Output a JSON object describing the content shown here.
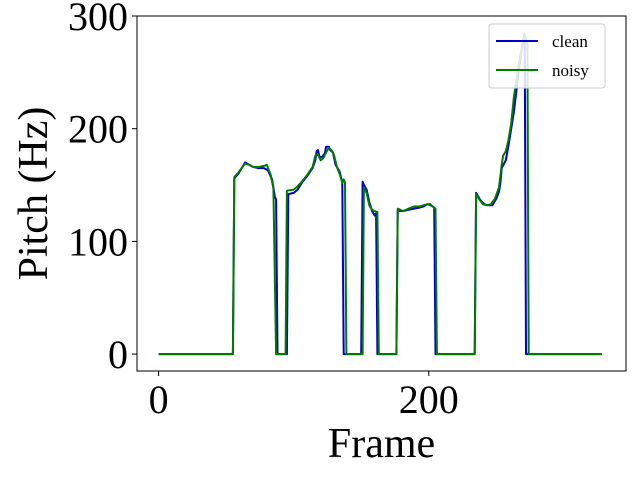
{
  "chart_data": {
    "type": "line",
    "title": "",
    "xlabel": "Frame",
    "ylabel": "Pitch (Hz)",
    "xlim": [
      -16,
      346
    ],
    "ylim": [
      -15,
      300
    ],
    "x_ticks": [
      0,
      200
    ],
    "x_tick_labels": [
      "0",
      "200"
    ],
    "y_ticks": [
      0,
      100,
      200,
      300
    ],
    "y_tick_labels": [
      "0",
      "100",
      "200",
      "300"
    ],
    "grid": false,
    "legend_position": "top-right",
    "series": [
      {
        "name": "clean",
        "color": "#0000cc",
        "points": [
          [
            0,
            0
          ],
          [
            55,
            0
          ],
          [
            56,
            156
          ],
          [
            59,
            160
          ],
          [
            62,
            166
          ],
          [
            64,
            170
          ],
          [
            67,
            168
          ],
          [
            70,
            166
          ],
          [
            74,
            165
          ],
          [
            78,
            165
          ],
          [
            81,
            163
          ],
          [
            84,
            155
          ],
          [
            86,
            140
          ],
          [
            87,
            137
          ],
          [
            88,
            0
          ],
          [
            95,
            0
          ],
          [
            96,
            142
          ],
          [
            100,
            143
          ],
          [
            103,
            146
          ],
          [
            106,
            152
          ],
          [
            110,
            158
          ],
          [
            114,
            165
          ],
          [
            116,
            172
          ],
          [
            117,
            180
          ],
          [
            118,
            181
          ],
          [
            119,
            175
          ],
          [
            121,
            175
          ],
          [
            123,
            178
          ],
          [
            124,
            184
          ],
          [
            126,
            184
          ],
          [
            127,
            181
          ],
          [
            129,
            179
          ],
          [
            131,
            168
          ],
          [
            134,
            162
          ],
          [
            136,
            152
          ],
          [
            137,
            0
          ],
          [
            150,
            0
          ],
          [
            151,
            153
          ],
          [
            152,
            150
          ],
          [
            154,
            146
          ],
          [
            156,
            135
          ],
          [
            158,
            127
          ],
          [
            160,
            123
          ],
          [
            161,
            125
          ],
          [
            162,
            0
          ],
          [
            176,
            0
          ],
          [
            177,
            127
          ],
          [
            181,
            127
          ],
          [
            185,
            128
          ],
          [
            189,
            129
          ],
          [
            193,
            130
          ],
          [
            196,
            131
          ],
          [
            199,
            133
          ],
          [
            201,
            133
          ],
          [
            203,
            131
          ],
          [
            204,
            130
          ],
          [
            205,
            0
          ],
          [
            234,
            0
          ],
          [
            235,
            143
          ],
          [
            238,
            137
          ],
          [
            241,
            133
          ],
          [
            244,
            132
          ],
          [
            247,
            132
          ],
          [
            250,
            138
          ],
          [
            252,
            144
          ],
          [
            253,
            152
          ],
          [
            254,
            165
          ],
          [
            257,
            172
          ],
          [
            259,
            185
          ],
          [
            261,
            200
          ],
          [
            263,
            215
          ],
          [
            265,
            235
          ],
          [
            267,
            255
          ],
          [
            269,
            272
          ],
          [
            270,
            278
          ],
          [
            271,
            284
          ],
          [
            272,
            0
          ],
          [
            328,
            0
          ]
        ]
      },
      {
        "name": "noisy",
        "color": "#007a00",
        "points": [
          [
            0,
            0
          ],
          [
            55,
            0
          ],
          [
            56,
            157
          ],
          [
            59,
            161
          ],
          [
            62,
            166
          ],
          [
            64,
            169
          ],
          [
            67,
            168
          ],
          [
            70,
            166
          ],
          [
            74,
            166
          ],
          [
            78,
            167
          ],
          [
            80,
            168
          ],
          [
            83,
            159
          ],
          [
            85,
            147
          ],
          [
            87,
            0
          ],
          [
            94,
            0
          ],
          [
            95,
            145
          ],
          [
            100,
            146
          ],
          [
            103,
            149
          ],
          [
            106,
            153
          ],
          [
            110,
            159
          ],
          [
            114,
            166
          ],
          [
            116,
            176
          ],
          [
            118,
            177
          ],
          [
            120,
            172
          ],
          [
            122,
            174
          ],
          [
            124,
            179
          ],
          [
            126,
            183
          ],
          [
            128,
            181
          ],
          [
            130,
            176
          ],
          [
            132,
            166
          ],
          [
            134,
            160
          ],
          [
            136,
            152
          ],
          [
            137,
            155
          ],
          [
            138,
            152
          ],
          [
            139,
            0
          ],
          [
            151,
            0
          ],
          [
            152,
            148
          ],
          [
            154,
            143
          ],
          [
            156,
            132
          ],
          [
            158,
            128
          ],
          [
            160,
            127
          ],
          [
            162,
            126
          ],
          [
            163,
            0
          ],
          [
            176,
            0
          ],
          [
            177,
            129
          ],
          [
            181,
            127
          ],
          [
            185,
            129
          ],
          [
            189,
            131
          ],
          [
            193,
            131
          ],
          [
            196,
            132
          ],
          [
            199,
            133
          ],
          [
            201,
            132
          ],
          [
            203,
            131
          ],
          [
            205,
            129
          ],
          [
            206,
            0
          ],
          [
            234,
            0
          ],
          [
            235,
            142
          ],
          [
            237,
            138
          ],
          [
            240,
            133
          ],
          [
            243,
            132
          ],
          [
            246,
            133
          ],
          [
            249,
            138
          ],
          [
            252,
            148
          ],
          [
            254,
            168
          ],
          [
            255,
            176
          ],
          [
            257,
            180
          ],
          [
            259,
            190
          ],
          [
            261,
            205
          ],
          [
            263,
            228
          ],
          [
            265,
            245
          ],
          [
            267,
            260
          ],
          [
            269,
            272
          ],
          [
            271,
            284
          ],
          [
            273,
            275
          ],
          [
            274,
            0
          ],
          [
            328,
            0
          ]
        ]
      }
    ]
  }
}
